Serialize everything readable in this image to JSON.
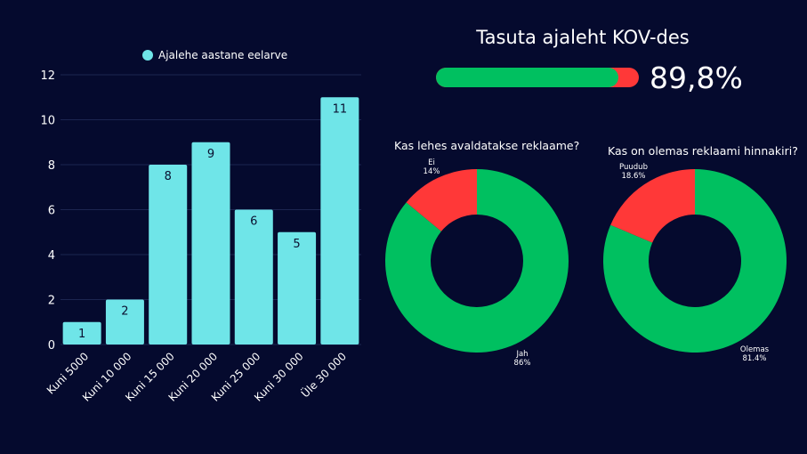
{
  "colors": {
    "background": "#050a2e",
    "bar": "#6fe5e8",
    "green": "#00c060",
    "red": "#ff3838",
    "grid": "#1c2550"
  },
  "kpi": {
    "title": "Tasuta ajaleht KOV-des",
    "value_label": "89,8%",
    "value": 89.8
  },
  "chart_data": [
    {
      "type": "bar",
      "title": "",
      "legend": "Ajalehe aastane eelarve",
      "legend_position": "top",
      "categories": [
        "Kuni 5000",
        "Kuni 10 000",
        "Kuni 15 000",
        "Kuni 20 000",
        "Kuni 25 000",
        "Kuni 30 000",
        "Üle 30 000"
      ],
      "values": [
        1,
        2,
        8,
        9,
        6,
        5,
        11
      ],
      "yticks": [
        0,
        2,
        4,
        6,
        8,
        10,
        12
      ],
      "ylim": [
        0,
        12
      ],
      "xlabel": "",
      "ylabel": "",
      "grid": true
    },
    {
      "type": "pie",
      "title": "Kas lehes avaldatakse reklaame?",
      "labels": [
        "Jah",
        "Ei"
      ],
      "values": [
        86,
        14
      ],
      "value_labels": [
        "86%",
        "14%"
      ]
    },
    {
      "type": "pie",
      "title": "Kas on olemas reklaami hinnakiri?",
      "labels": [
        "Olemas",
        "Puudub"
      ],
      "values": [
        81.4,
        18.6
      ],
      "value_labels": [
        "81.4%",
        "18.6%"
      ]
    }
  ]
}
